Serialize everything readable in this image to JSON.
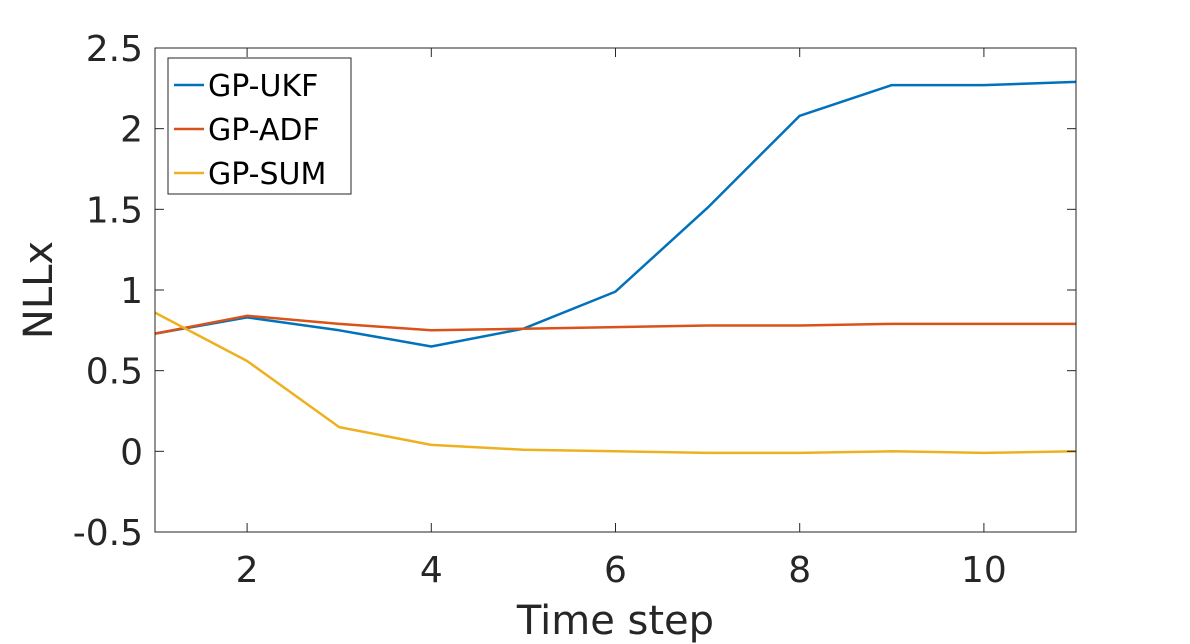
{
  "chart_data": {
    "type": "line",
    "title": "",
    "xlabel": "Time step",
    "ylabel": "NLLx",
    "xlim": [
      1,
      11
    ],
    "ylim": [
      -0.5,
      2.5
    ],
    "xticks": [
      2,
      4,
      6,
      8,
      10
    ],
    "xtick_labels": [
      "2",
      "4",
      "6",
      "8",
      "10"
    ],
    "yticks": [
      -0.5,
      0,
      0.5,
      1,
      1.5,
      2,
      2.5
    ],
    "ytick_labels": [
      "-0.5",
      "0",
      "0.5",
      "1",
      "1.5",
      "2",
      "2.5"
    ],
    "grid": false,
    "legend_position": "top-left",
    "x": [
      1,
      2,
      3,
      4,
      5,
      6,
      7,
      8,
      9,
      10,
      11
    ],
    "series": [
      {
        "name": "GP-UKF",
        "color": "#0072BD",
        "values": [
          0.73,
          0.83,
          0.75,
          0.65,
          0.76,
          0.99,
          1.51,
          2.08,
          2.27,
          2.27,
          2.29
        ]
      },
      {
        "name": "GP-ADF",
        "color": "#D95319",
        "values": [
          0.73,
          0.84,
          0.79,
          0.75,
          0.76,
          0.77,
          0.78,
          0.78,
          0.79,
          0.79,
          0.79
        ]
      },
      {
        "name": "GP-SUM",
        "color": "#EDB120",
        "values": [
          0.86,
          0.56,
          0.15,
          0.04,
          0.01,
          0.0,
          -0.01,
          -0.01,
          0.0,
          -0.01,
          -0.0
        ]
      }
    ]
  }
}
